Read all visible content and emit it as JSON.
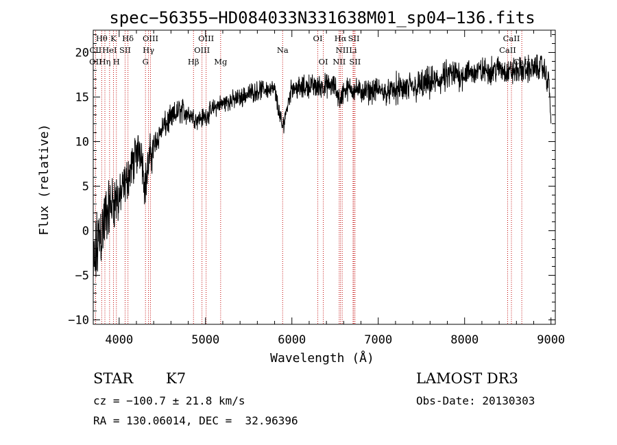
{
  "chart_data": {
    "type": "line",
    "title": "spec−56355−HD084033N331638M01_sp04−136.fits",
    "xlabel": "Wavelength (Å)",
    "ylabel": "Flux (relative)",
    "xlim": [
      3700,
      9050
    ],
    "ylim": [
      -10.5,
      22.5
    ],
    "xticks": [
      4000,
      5000,
      6000,
      7000,
      8000,
      9000
    ],
    "yticks": [
      -10,
      -5,
      0,
      5,
      10,
      15,
      20
    ],
    "xtick_labels": [
      "4000",
      "5000",
      "6000",
      "7000",
      "8000",
      "9000"
    ],
    "ytick_labels": [
      "−10",
      "−5",
      "0",
      "5",
      "10",
      "15",
      "20"
    ],
    "series": [
      {
        "name": "flux",
        "x": [
          3700,
          3730,
          3760,
          3790,
          3820,
          3850,
          3880,
          3910,
          3940,
          3970,
          4000,
          4040,
          4080,
          4120,
          4160,
          4200,
          4250,
          4300,
          4350,
          4400,
          4450,
          4500,
          4600,
          4700,
          4800,
          4900,
          5000,
          5100,
          5200,
          5300,
          5400,
          5500,
          5600,
          5700,
          5800,
          5890,
          6000,
          6100,
          6200,
          6300,
          6400,
          6500,
          6563,
          6600,
          6700,
          6800,
          6900,
          7000,
          7100,
          7200,
          7300,
          7400,
          7500,
          7600,
          7700,
          7800,
          7900,
          8000,
          8100,
          8200,
          8300,
          8400,
          8500,
          8600,
          8700,
          8800,
          8900,
          8980,
          9000
        ],
        "y": [
          -5,
          -3,
          -1,
          0,
          0.5,
          1.5,
          2.5,
          3,
          3.5,
          3.5,
          3.5,
          4.5,
          5.5,
          6.5,
          7.5,
          8.5,
          9.5,
          5,
          8,
          9.5,
          10.5,
          11.5,
          12.5,
          13.5,
          13.2,
          12.5,
          12.8,
          13.8,
          14.3,
          14.6,
          14.9,
          15.4,
          15.7,
          15.9,
          15.8,
          11.5,
          16.2,
          15.9,
          16.3,
          16.1,
          16.3,
          16.1,
          14.5,
          15.8,
          16,
          15.6,
          15.6,
          15.8,
          15.5,
          15.8,
          15.9,
          16,
          16.3,
          16.5,
          16.8,
          17.3,
          17.5,
          17.6,
          17.8,
          17.9,
          18,
          18.2,
          17.8,
          17.9,
          18.1,
          18.2,
          18.4,
          16.5,
          12
        ]
      }
    ],
    "spectral_lines": [
      {
        "label": "Hθ",
        "x": 3798,
        "row": 0
      },
      {
        "label": "K",
        "x": 3934,
        "row": 0
      },
      {
        "label": "Hδ",
        "x": 4102,
        "row": 0
      },
      {
        "label": "OIII",
        "x": 4363,
        "row": 0
      },
      {
        "label": "OIII",
        "x": 5007,
        "row": 0
      },
      {
        "label": "OI",
        "x": 6300,
        "row": 0
      },
      {
        "label": "Hα",
        "x": 6563,
        "row": 0
      },
      {
        "label": "SII",
        "x": 6717,
        "row": 0
      },
      {
        "label": "CaII",
        "x": 8542,
        "row": 0
      },
      {
        "label": "CII",
        "x": 3727,
        "row": 1
      },
      {
        "label": "HeI",
        "x": 3889,
        "row": 1
      },
      {
        "label": "SII",
        "x": 4069,
        "row": 1
      },
      {
        "label": "Hγ",
        "x": 4340,
        "row": 1
      },
      {
        "label": "OIII",
        "x": 4959,
        "row": 1
      },
      {
        "label": "Na",
        "x": 5893,
        "row": 1
      },
      {
        "label": "NII",
        "x": 6583,
        "row": 1
      },
      {
        "label": "Li",
        "x": 6708,
        "row": 1
      },
      {
        "label": "CaII",
        "x": 8498,
        "row": 1
      },
      {
        "label": "OII",
        "x": 3727,
        "row": 2
      },
      {
        "label": "Hη",
        "x": 3835,
        "row": 2
      },
      {
        "label": "H",
        "x": 3968,
        "row": 2
      },
      {
        "label": "G",
        "x": 4305,
        "row": 2
      },
      {
        "label": "Hβ",
        "x": 4861,
        "row": 2
      },
      {
        "label": "Mg",
        "x": 5175,
        "row": 2
      },
      {
        "label": "OI",
        "x": 6364,
        "row": 2
      },
      {
        "label": "NII",
        "x": 6548,
        "row": 2
      },
      {
        "label": "SII",
        "x": 6731,
        "row": 2
      },
      {
        "label": "CaII",
        "x": 8662,
        "row": 2
      }
    ],
    "line_color": "#000000",
    "marker_color": "#c00000"
  },
  "info": {
    "object_class": "STAR",
    "subclass": "K7",
    "survey": "LAMOST DR3",
    "cz": "cz = −100.7 ± 21.8 km/s",
    "obs_date": "Obs-Date: 20130303",
    "radec": "RA = 130.06014, DEC =  32.96396"
  }
}
